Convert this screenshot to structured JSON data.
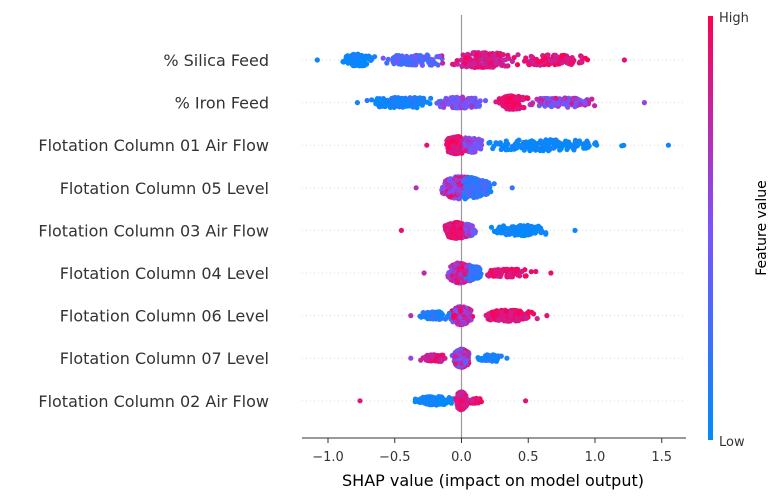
{
  "chart_data": {
    "type": "scatter",
    "subtype": "shap-beeswarm",
    "xlabel": "SHAP value (impact on model output)",
    "xlim": [
      -1.2,
      1.7
    ],
    "x_ticks": [
      "−1.0",
      "−0.5",
      "0.0",
      "0.5",
      "1.0",
      "1.5"
    ],
    "x_tick_values": [
      -1.0,
      -0.5,
      0.0,
      0.5,
      1.0,
      1.5
    ],
    "colorbar": {
      "title": "Feature value",
      "high_label": "High",
      "low_label": "Low",
      "low_color": "#008bfb",
      "high_color": "#ff0052"
    },
    "features": [
      {
        "name": "% Silica Feed",
        "range": [
          -1.08,
          1.22
        ]
      },
      {
        "name": "% Iron Feed",
        "range": [
          -0.78,
          1.37
        ]
      },
      {
        "name": "Flotation Column 01 Air Flow",
        "range": [
          -0.26,
          1.55
        ]
      },
      {
        "name": "Flotation Column 05 Level",
        "range": [
          -0.34,
          0.38
        ]
      },
      {
        "name": "Flotation Column 03 Air Flow",
        "range": [
          -0.45,
          0.85
        ]
      },
      {
        "name": "Flotation Column 04 Level",
        "range": [
          -0.28,
          0.67
        ]
      },
      {
        "name": "Flotation Column 06 Level",
        "range": [
          -0.38,
          0.64
        ]
      },
      {
        "name": "Flotation Column 07 Level",
        "range": [
          -0.38,
          0.34
        ]
      },
      {
        "name": "Flotation Column 02 Air Flow",
        "range": [
          -0.76,
          0.48
        ]
      }
    ]
  }
}
